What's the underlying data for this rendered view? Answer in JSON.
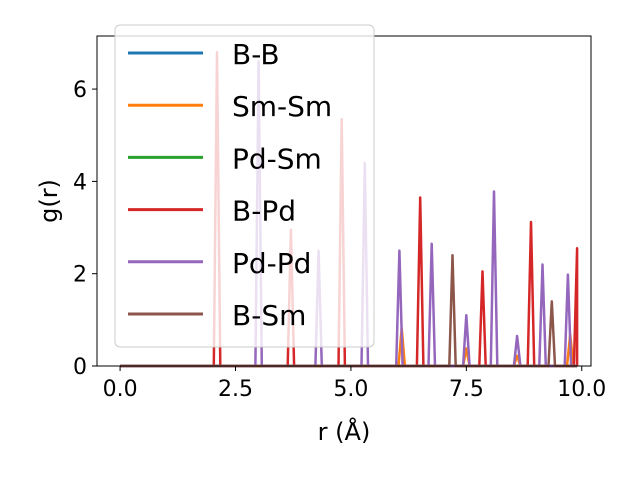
{
  "chart_data": {
    "type": "line",
    "title": "",
    "xlabel": "r (Å)",
    "ylabel": "g(r)",
    "xlim": [
      -0.5,
      10.2
    ],
    "ylim": [
      0,
      7.15
    ],
    "xticks": [
      0.0,
      2.5,
      5.0,
      7.5,
      10.0
    ],
    "xtick_labels": [
      "0.0",
      "2.5",
      "5.0",
      "7.5",
      "10.0"
    ],
    "yticks": [
      0,
      2,
      4,
      6
    ],
    "ytick_labels": [
      "0",
      "2",
      "4",
      "6"
    ],
    "grid": false,
    "legend_position": "top-left",
    "peak_half_width": 0.07,
    "x_min": 0.0,
    "x_max": 9.9,
    "series": [
      {
        "name": "B-B",
        "color": "#1f77b4",
        "peaks": [],
        "baseline": 0
      },
      {
        "name": "Sm-Sm",
        "color": "#ff7f0e",
        "peaks": [
          [
            6.1,
            0.82
          ],
          [
            7.5,
            0.38
          ],
          [
            8.6,
            0.22
          ],
          [
            9.75,
            0.68
          ]
        ],
        "baseline": 0
      },
      {
        "name": "Pd-Sm",
        "color": "#2ca02c",
        "peaks": [],
        "baseline": 0
      },
      {
        "name": "B-Pd",
        "color": "#d62728",
        "peaks": [
          [
            2.1,
            6.8
          ],
          [
            3.7,
            2.95
          ],
          [
            4.8,
            5.35
          ],
          [
            6.5,
            3.65
          ],
          [
            7.85,
            2.05
          ],
          [
            8.9,
            3.12
          ],
          [
            9.9,
            2.55
          ]
        ],
        "baseline": 0
      },
      {
        "name": "Pd-Pd",
        "color": "#9467bd",
        "peaks": [
          [
            3.0,
            6.6
          ],
          [
            4.3,
            2.5
          ],
          [
            5.3,
            4.4
          ],
          [
            6.05,
            2.5
          ],
          [
            6.75,
            2.65
          ],
          [
            7.5,
            1.1
          ],
          [
            8.1,
            3.78
          ],
          [
            8.6,
            0.65
          ],
          [
            9.15,
            2.2
          ],
          [
            9.7,
            1.98
          ]
        ],
        "baseline": 0
      },
      {
        "name": "B-Sm",
        "color": "#8c564b",
        "peaks": [
          [
            7.2,
            2.4
          ],
          [
            9.35,
            1.4
          ]
        ],
        "baseline": 0
      }
    ]
  }
}
